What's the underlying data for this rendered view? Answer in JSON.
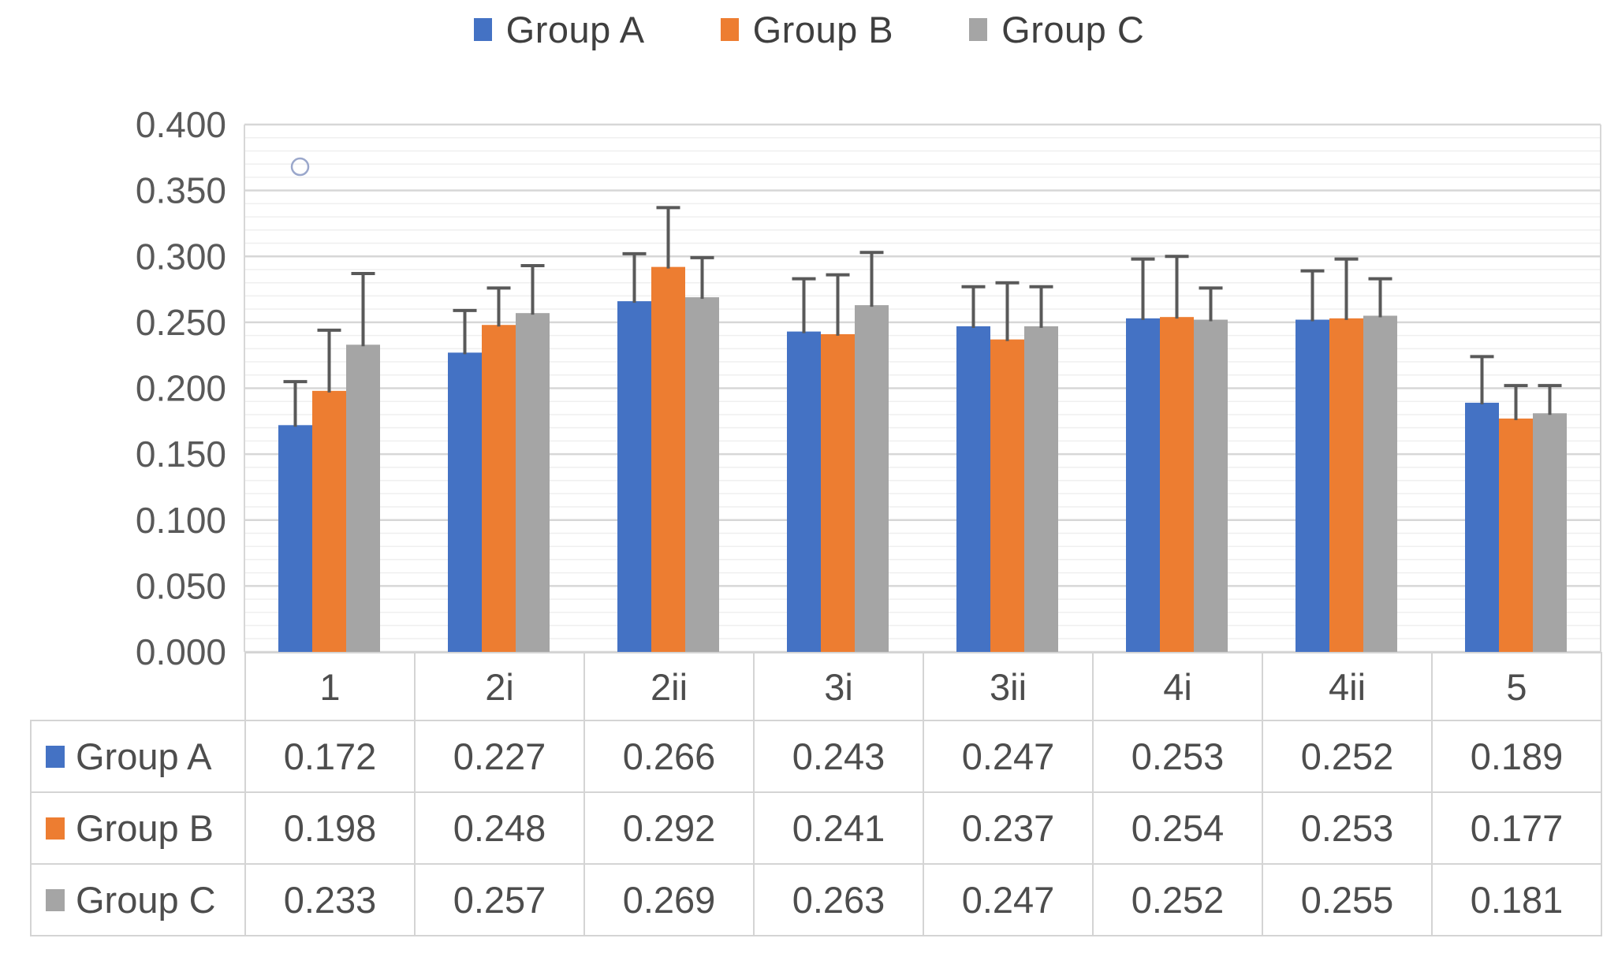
{
  "chart_data": {
    "type": "bar",
    "title": "",
    "xlabel": "",
    "ylabel": "",
    "categories": [
      "1",
      "2i",
      "2ii",
      "3i",
      "3ii",
      "4i",
      "4ii",
      "5"
    ],
    "series": [
      {
        "name": "Group A",
        "color": "#4472C4",
        "values": [
          0.172,
          0.227,
          0.266,
          0.243,
          0.247,
          0.253,
          0.252,
          0.189
        ],
        "error_upper": [
          0.033,
          0.032,
          0.036,
          0.04,
          0.03,
          0.045,
          0.037,
          0.035
        ]
      },
      {
        "name": "Group B",
        "color": "#ED7D31",
        "values": [
          0.198,
          0.248,
          0.292,
          0.241,
          0.237,
          0.254,
          0.253,
          0.177
        ],
        "error_upper": [
          0.046,
          0.028,
          0.045,
          0.045,
          0.043,
          0.046,
          0.045,
          0.025
        ]
      },
      {
        "name": "Group C",
        "color": "#A5A5A5",
        "values": [
          0.233,
          0.257,
          0.269,
          0.263,
          0.247,
          0.252,
          0.255,
          0.181
        ],
        "error_upper": [
          0.054,
          0.036,
          0.03,
          0.04,
          0.03,
          0.024,
          0.028,
          0.021
        ]
      }
    ],
    "y_axis": {
      "min": 0,
      "max": 0.4,
      "major_step": 0.05,
      "minor_step": 0.01,
      "tick_labels": [
        "0.000",
        "0.050",
        "0.100",
        "0.150",
        "0.200",
        "0.250",
        "0.300",
        "0.350",
        "0.400"
      ]
    },
    "legend_position": "top",
    "grid": {
      "major": true,
      "minor": true
    },
    "error_bars": "upper whiskers with end caps (extents estimated from pixels)",
    "stray_marker": {
      "shape": "circle-outline",
      "value": 0.368,
      "x_plot_fraction": 0.041,
      "color": "#9aa7cb"
    },
    "data_table": {
      "shown": true,
      "value_format": "0.000"
    }
  },
  "colors": {
    "background": "#ffffff",
    "gridline_major": "#d7d7d7",
    "gridline_minor": "#efefef",
    "plot_border": "#d7d7d7",
    "error_bar": "#595959",
    "table_border": "#d4d4d4",
    "axis_text": "#595959",
    "text": "#4d4d4d"
  }
}
